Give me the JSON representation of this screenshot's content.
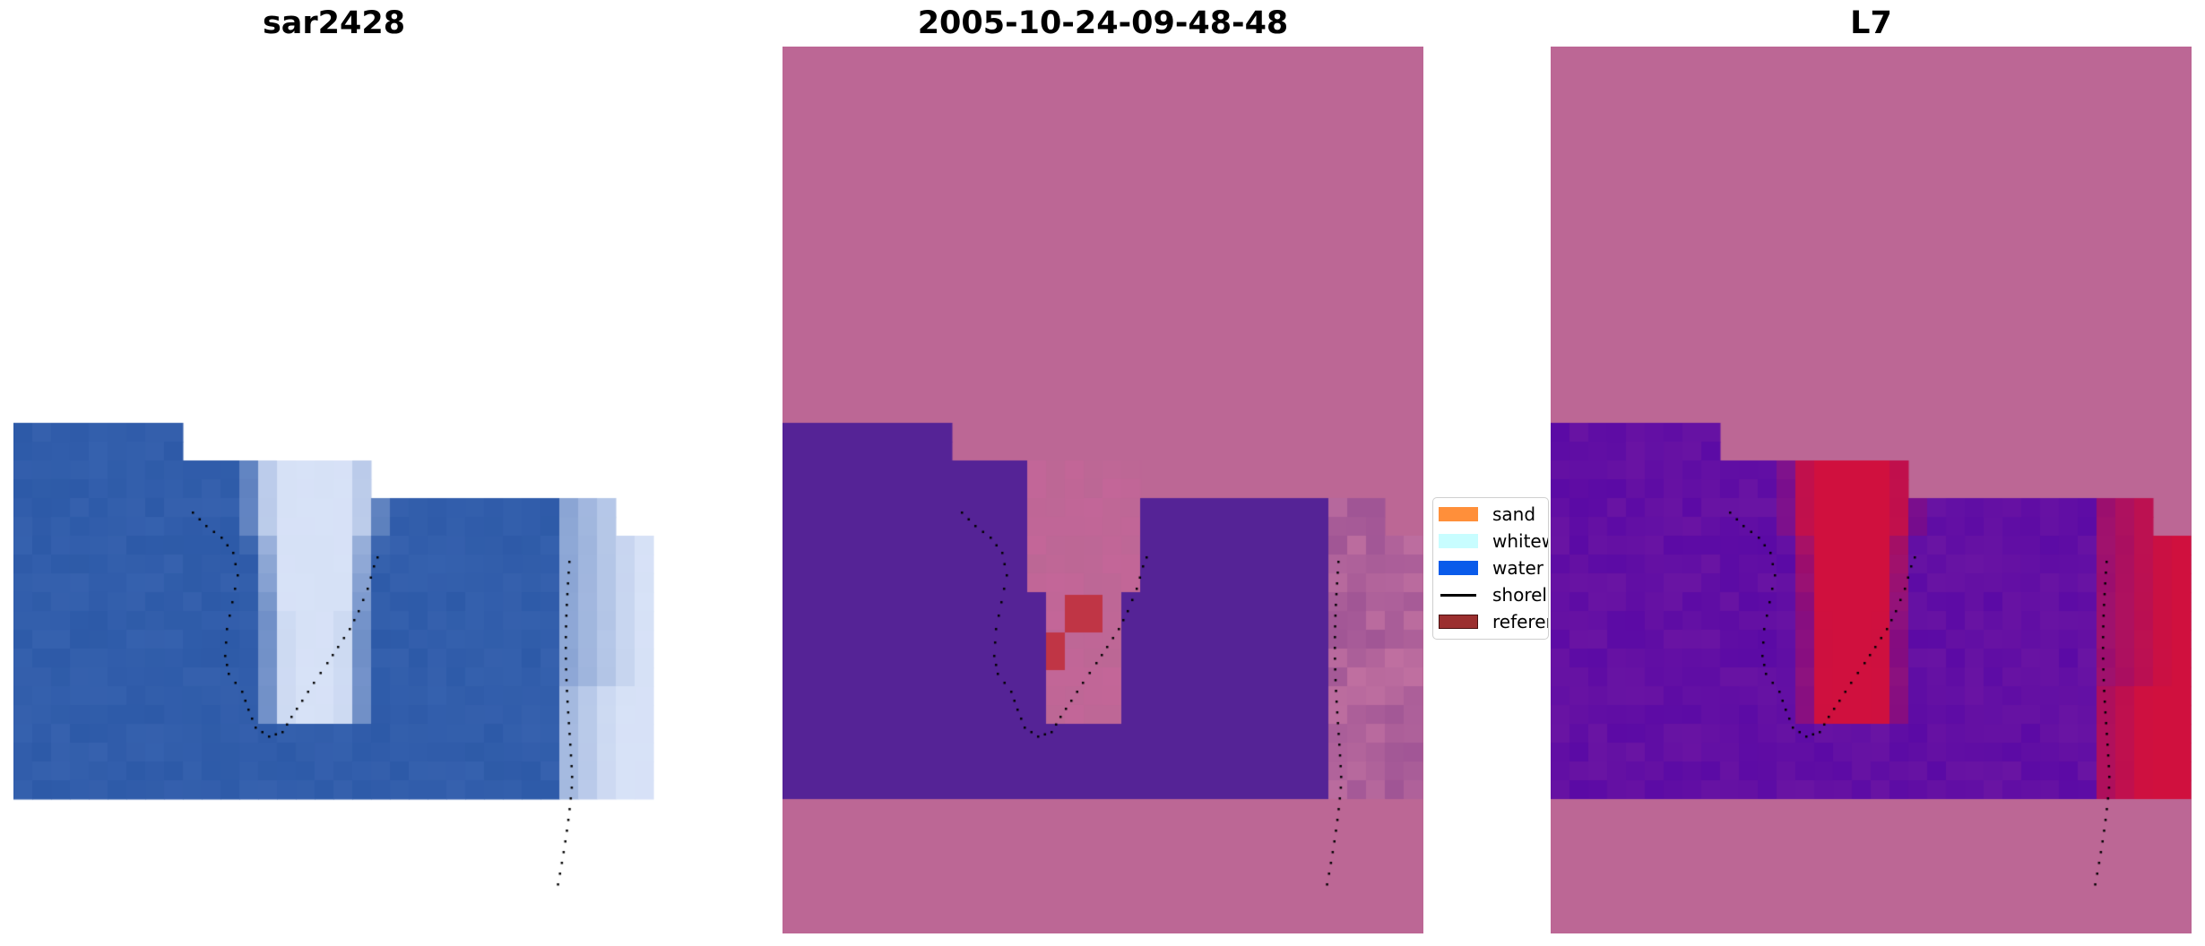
{
  "panels": [
    {
      "title": "sar2428"
    },
    {
      "title": "2005-10-24-09-48-48"
    },
    {
      "title": "L7"
    }
  ],
  "legend": {
    "items": [
      {
        "label": "sand",
        "color": "#ff8f3a",
        "kind": "patch"
      },
      {
        "label": "whitewater",
        "color": "#c8fdff",
        "kind": "patch"
      },
      {
        "label": "water",
        "color": "#0a5bea",
        "kind": "patch"
      },
      {
        "label": "shoreline",
        "color": "#000000",
        "kind": "line"
      },
      {
        "label": "reference shoreline",
        "color": "#9b2f2f",
        "kind": "patch"
      }
    ]
  },
  "colors": {
    "classified_background": "#bc6795",
    "classified_water": "#552396",
    "classified_whitewater_overlay": "#c8659a",
    "classified_red": "#c03545",
    "mndwi_high": "#d0103e",
    "mndwi_low": "#5b0aa5",
    "rgb_water": "#2d5aa8",
    "rgb_foam": "#e9f0ff",
    "shoreline_dots": "#000000"
  }
}
